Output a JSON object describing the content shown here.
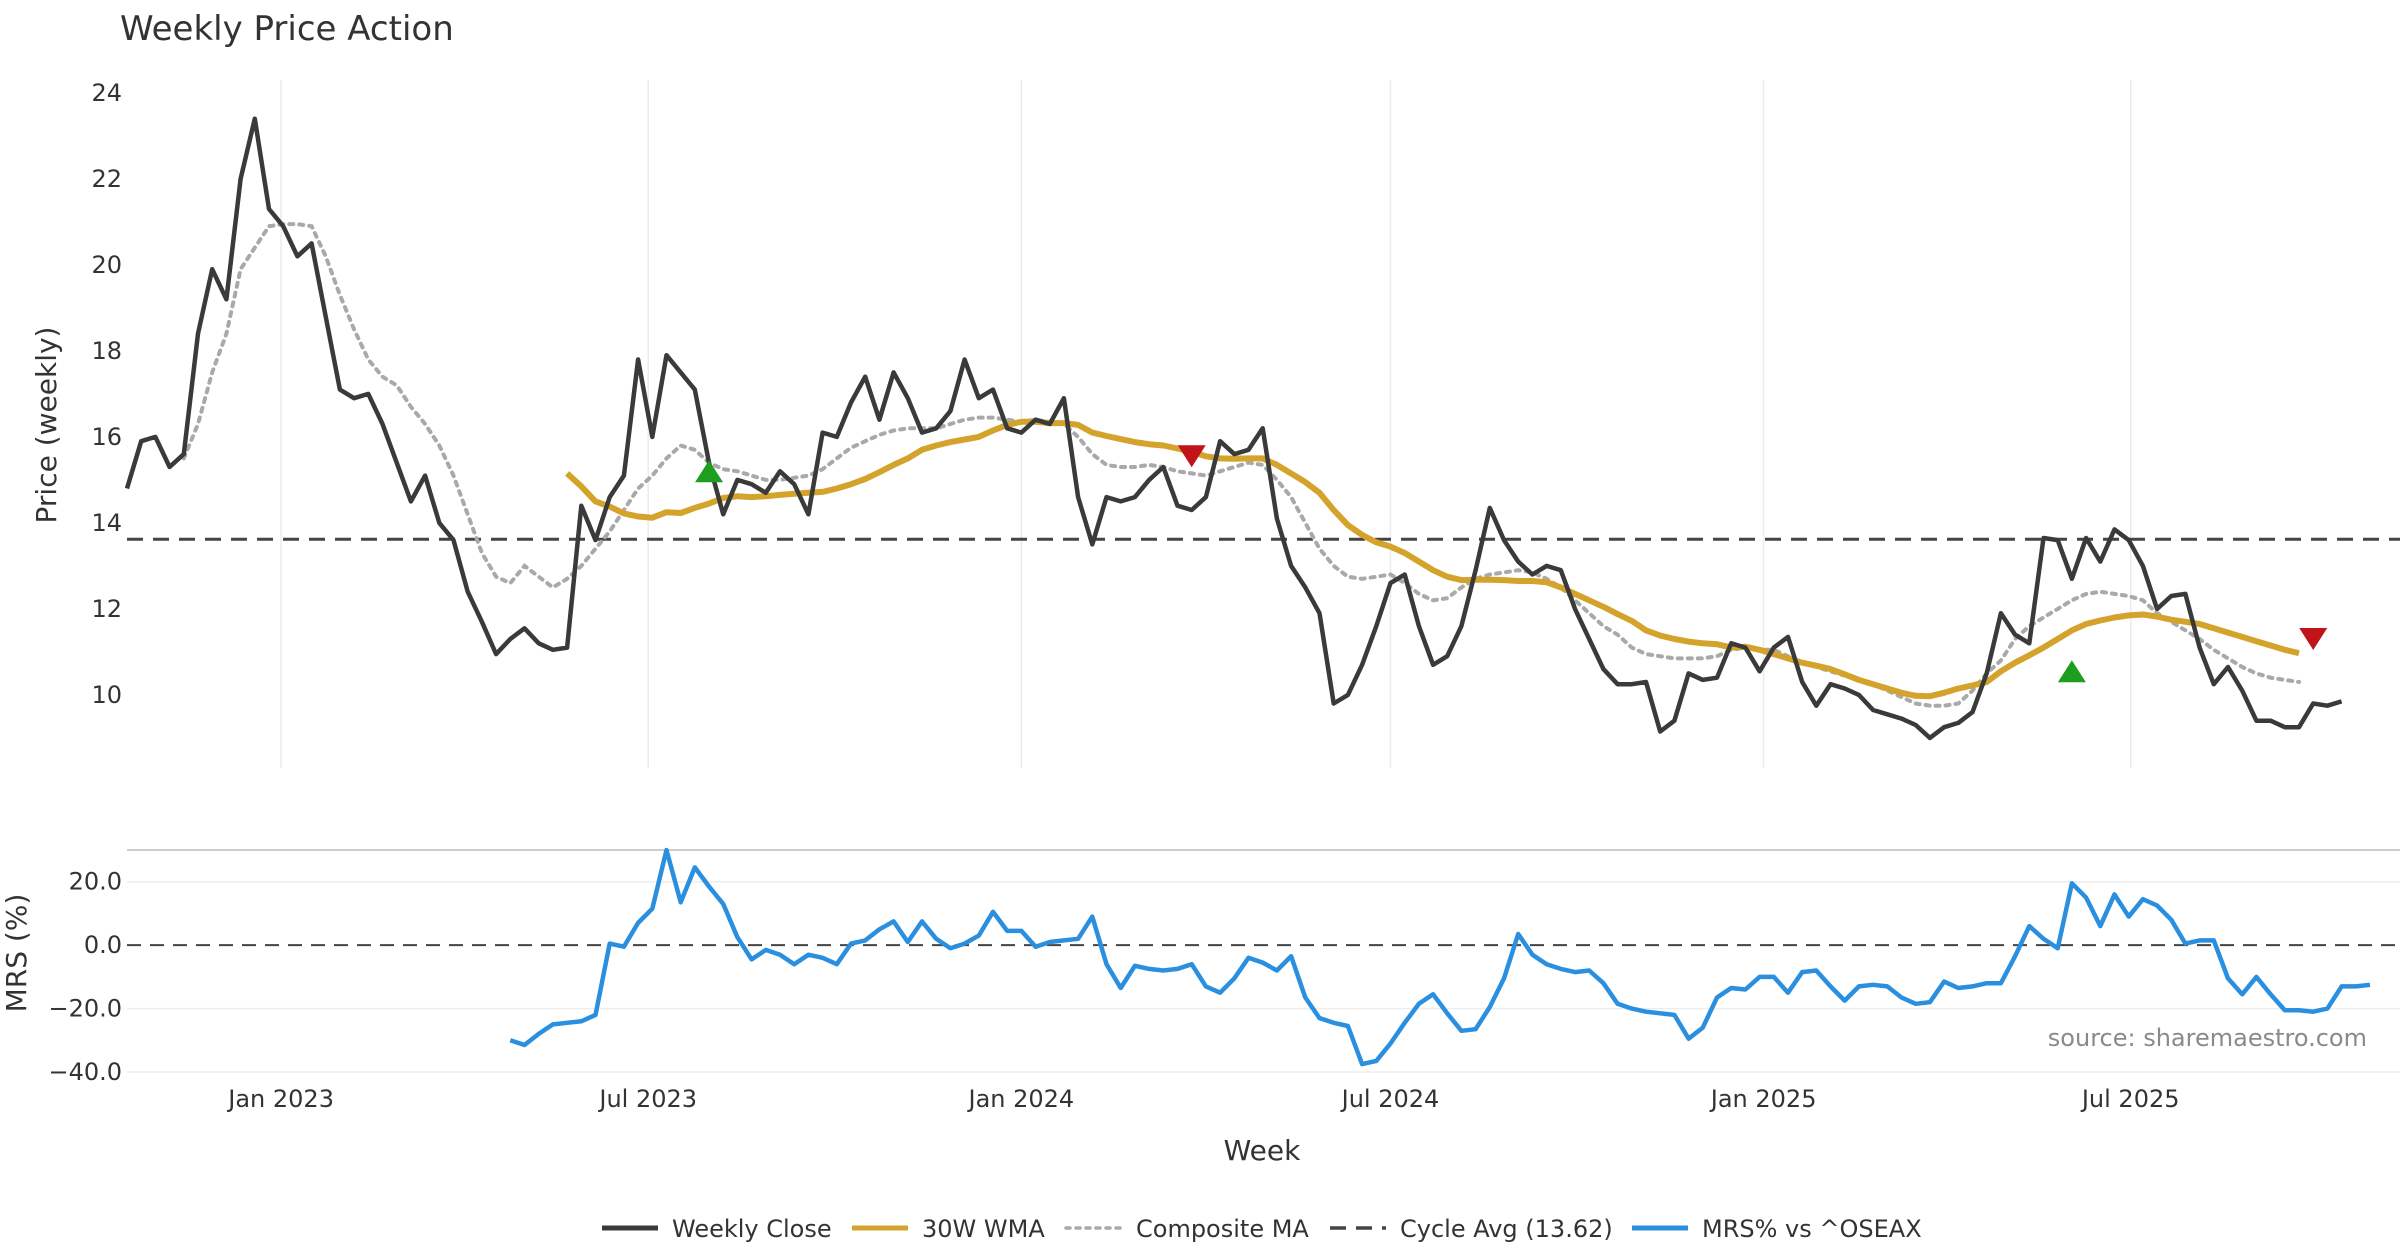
{
  "chart_data": {
    "type": "line",
    "title": "Weekly Price Action",
    "xlabel": "Week",
    "source": "source: sharemaestro.com",
    "x_range": [
      "2022-10-17",
      "2025-10-27"
    ],
    "x_ticks": [
      {
        "date": "2023-01-01",
        "label": "Jan 2023"
      },
      {
        "date": "2023-07-01",
        "label": "Jul 2023"
      },
      {
        "date": "2024-01-01",
        "label": "Jan 2024"
      },
      {
        "date": "2024-07-01",
        "label": "Jul 2024"
      },
      {
        "date": "2025-01-01",
        "label": "Jan 2025"
      },
      {
        "date": "2025-07-01",
        "label": "Jul 2025"
      }
    ],
    "colors": {
      "close": "#3a3a3a",
      "wma": "#d4a32b",
      "composite": "#a9a9a9",
      "cycle": "#444444",
      "mrs": "#2b8fe0",
      "buy": "#1e9e1e",
      "sell": "#c0141a"
    },
    "price_panel": {
      "ylabel": "Price (weekly)",
      "ylim": [
        8.3,
        24.3
      ],
      "yticks": [
        10,
        12,
        14,
        16,
        18,
        20,
        22,
        24
      ],
      "grid": true,
      "first_date": "2022-10-17",
      "step_days": 7,
      "cycle_avg": 13.62,
      "weekly_close": [
        14.8,
        15.9,
        16.0,
        15.3,
        15.6,
        18.4,
        19.9,
        19.2,
        22.0,
        23.4,
        21.3,
        20.9,
        20.2,
        20.5,
        18.8,
        17.1,
        16.9,
        17.0,
        16.3,
        15.4,
        14.5,
        15.1,
        14.0,
        13.6,
        12.4,
        11.7,
        10.95,
        11.3,
        11.55,
        11.2,
        11.05,
        11.1,
        14.4,
        13.6,
        14.6,
        15.1,
        17.8,
        16.0,
        17.9,
        17.5,
        17.1,
        15.4,
        14.2,
        15.0,
        14.9,
        14.7,
        15.2,
        14.9,
        14.2,
        16.1,
        16.0,
        16.8,
        17.4,
        16.4,
        17.5,
        16.9,
        16.1,
        16.2,
        16.6,
        17.8,
        16.9,
        17.1,
        16.2,
        16.1,
        16.4,
        16.3,
        16.9,
        14.6,
        13.5,
        14.6,
        14.5,
        14.6,
        15.0,
        15.3,
        14.4,
        14.3,
        14.6,
        15.9,
        15.6,
        15.7,
        16.2,
        14.1,
        13.0,
        12.5,
        11.9,
        9.8,
        10.0,
        10.7,
        11.6,
        12.6,
        12.8,
        11.6,
        10.7,
        10.9,
        11.6,
        12.9,
        14.35,
        13.6,
        13.1,
        12.8,
        13.0,
        12.9,
        12.0,
        11.3,
        10.6,
        10.25,
        10.25,
        10.3,
        9.15,
        9.4,
        10.5,
        10.35,
        10.4,
        11.2,
        11.1,
        10.55,
        11.1,
        11.35,
        10.3,
        9.75,
        10.25,
        10.15,
        10.0,
        9.65,
        9.55,
        9.45,
        9.3,
        9.0,
        9.25,
        9.35,
        9.6,
        10.5,
        11.9,
        11.4,
        11.2,
        13.65,
        13.6,
        12.7,
        13.65,
        13.1,
        13.85,
        13.6,
        13.0,
        12.0,
        12.3,
        12.35,
        11.1,
        10.25,
        10.65,
        10.1,
        9.4,
        9.4,
        9.25,
        9.25,
        9.8,
        9.75,
        9.85
      ],
      "wma_30w": [
        null,
        null,
        null,
        null,
        null,
        null,
        null,
        null,
        null,
        null,
        null,
        null,
        null,
        null,
        null,
        null,
        null,
        null,
        null,
        null,
        null,
        null,
        null,
        null,
        null,
        null,
        null,
        null,
        null,
        null,
        null,
        15.15,
        14.85,
        14.5,
        14.38,
        14.22,
        14.15,
        14.12,
        14.25,
        14.23,
        14.35,
        14.45,
        14.58,
        14.62,
        14.6,
        14.62,
        14.65,
        14.68,
        14.7,
        14.72,
        14.8,
        14.9,
        15.02,
        15.18,
        15.35,
        15.5,
        15.7,
        15.8,
        15.88,
        15.94,
        16.0,
        16.15,
        16.28,
        16.35,
        16.35,
        16.32,
        16.32,
        16.28,
        16.1,
        16.02,
        15.95,
        15.88,
        15.83,
        15.8,
        15.73,
        15.65,
        15.55,
        15.5,
        15.49,
        15.5,
        15.5,
        15.35,
        15.15,
        14.95,
        14.7,
        14.3,
        13.95,
        13.72,
        13.55,
        13.45,
        13.3,
        13.1,
        12.9,
        12.75,
        12.67,
        12.68,
        12.68,
        12.67,
        12.65,
        12.65,
        12.62,
        12.5,
        12.35,
        12.2,
        12.05,
        11.88,
        11.72,
        11.5,
        11.38,
        11.3,
        11.24,
        11.2,
        11.18,
        11.1,
        11.12,
        11.05,
        10.95,
        10.85,
        10.75,
        10.68,
        10.6,
        10.48,
        10.35,
        10.25,
        10.15,
        10.05,
        9.98,
        9.97,
        10.05,
        10.15,
        10.22,
        10.3,
        10.55,
        10.75,
        10.92,
        11.1,
        11.3,
        11.5,
        11.65,
        11.73,
        11.8,
        11.85,
        11.87,
        11.82,
        11.75,
        11.7,
        11.65,
        11.55,
        11.45,
        11.35,
        11.25,
        11.15,
        11.05,
        10.97
      ],
      "composite_ma": [
        null,
        null,
        null,
        null,
        15.5,
        16.3,
        17.5,
        18.4,
        19.9,
        20.4,
        20.9,
        20.95,
        20.95,
        20.9,
        20.2,
        19.3,
        18.5,
        17.8,
        17.4,
        17.2,
        16.7,
        16.3,
        15.8,
        15.1,
        14.2,
        13.3,
        12.75,
        12.6,
        13.0,
        12.75,
        12.5,
        12.7,
        13.0,
        13.4,
        13.8,
        14.3,
        14.8,
        15.1,
        15.5,
        15.8,
        15.7,
        15.4,
        15.25,
        15.2,
        15.1,
        15.0,
        15.0,
        15.05,
        15.1,
        15.25,
        15.5,
        15.75,
        15.9,
        16.05,
        16.15,
        16.2,
        16.2,
        16.2,
        16.3,
        16.4,
        16.45,
        16.45,
        16.4,
        16.35,
        16.4,
        16.35,
        16.3,
        16.0,
        15.6,
        15.35,
        15.3,
        15.3,
        15.35,
        15.3,
        15.2,
        15.15,
        15.1,
        15.2,
        15.3,
        15.4,
        15.35,
        15.0,
        14.6,
        14.0,
        13.4,
        13.0,
        12.75,
        12.7,
        12.75,
        12.8,
        12.6,
        12.35,
        12.2,
        12.25,
        12.5,
        12.7,
        12.8,
        12.85,
        12.9,
        12.85,
        12.7,
        12.5,
        12.2,
        11.9,
        11.6,
        11.4,
        11.1,
        10.95,
        10.9,
        10.85,
        10.85,
        10.85,
        10.9,
        11.05,
        11.1,
        11.05,
        11.05,
        10.9,
        10.75,
        10.65,
        10.55,
        10.45,
        10.35,
        10.25,
        10.1,
        9.95,
        9.8,
        9.75,
        9.75,
        9.8,
        10.1,
        10.5,
        10.8,
        11.3,
        11.6,
        11.8,
        12.0,
        12.2,
        12.35,
        12.4,
        12.35,
        12.3,
        12.2,
        11.9,
        11.7,
        11.5,
        11.3,
        11.05,
        10.85,
        10.65,
        10.5,
        10.4,
        10.35,
        10.3
      ],
      "signals": [
        {
          "date": "2023-07-31",
          "type": "buy",
          "value": 15.2
        },
        {
          "date": "2024-03-25",
          "type": "sell",
          "value": 15.55
        },
        {
          "date": "2025-06-02",
          "type": "buy",
          "value": 10.55
        },
        {
          "date": "2025-09-29",
          "type": "sell",
          "value": 11.3
        }
      ]
    },
    "mrs_panel": {
      "ylabel": "MRS (%)",
      "ylim": [
        -40,
        30
      ],
      "yticks": [
        20,
        0,
        -20,
        -40
      ],
      "ytick_labels": [
        "20.0",
        "0.0",
        "−20.0",
        "−40.0"
      ],
      "zero_line": true,
      "first_date": "2023-04-24",
      "step_days": 7,
      "values": [
        -30,
        -31.5,
        -28,
        -25,
        -24.5,
        -24,
        -22,
        0.5,
        -0.5,
        7,
        11.5,
        30,
        13.5,
        24.5,
        18.5,
        13,
        2.5,
        -4.5,
        -1.5,
        -3,
        -6,
        -3,
        -4,
        -6,
        0.5,
        1.5,
        5,
        7.5,
        1,
        7.5,
        2,
        -1,
        0.5,
        3,
        10.5,
        4.5,
        4.5,
        -0.5,
        1,
        1.5,
        2,
        9,
        -6,
        -13.5,
        -6.5,
        -7.5,
        -8,
        -7.5,
        -6,
        -13,
        -15,
        -10.5,
        -4,
        -5.5,
        -8,
        -3.5,
        -16.5,
        -23,
        -24.5,
        -25.5,
        -37.5,
        -36.5,
        -31,
        -24.5,
        -18.5,
        -15.5,
        -21.5,
        -27,
        -26.5,
        -19.5,
        -10.5,
        3.5,
        -3,
        -6,
        -7.5,
        -8.5,
        -8,
        -12,
        -18.5,
        -20,
        -21,
        -21.5,
        -22,
        -29.5,
        -26,
        -16.5,
        -13.5,
        -14,
        -10,
        -10,
        -15,
        -8.5,
        -8,
        -13,
        -17.5,
        -13,
        -12.5,
        -13,
        -16.5,
        -18.5,
        -18,
        -11.5,
        -13.5,
        -13,
        -12,
        -12,
        -3.5,
        6,
        2,
        -1,
        19.5,
        15,
        6,
        16,
        9,
        14.5,
        12.5,
        8,
        0.5,
        1.5,
        1.5,
        -10.5,
        -15.5,
        -10,
        -15.5,
        -20.5,
        -20.5,
        -21,
        -20,
        -13,
        -13,
        -12.5
      ]
    },
    "legend": {
      "placement": "bottom-center",
      "entries": [
        {
          "label": "Weekly Close",
          "style": "solid",
          "color": "#3a3a3a"
        },
        {
          "label": "30W WMA",
          "style": "solid",
          "color": "#d4a32b"
        },
        {
          "label": "Composite MA",
          "style": "dotted",
          "color": "#a9a9a9"
        },
        {
          "label": "Cycle Avg (13.62)",
          "style": "dashed",
          "color": "#444444"
        },
        {
          "label": "MRS% vs ^OSEAX",
          "style": "solid",
          "color": "#2b8fe0"
        }
      ]
    }
  }
}
